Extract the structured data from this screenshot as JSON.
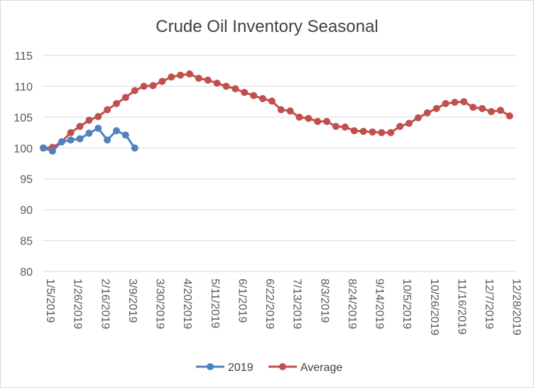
{
  "chart_data": {
    "type": "line",
    "title": "Crude Oil Inventory Seasonal",
    "xlabel": "",
    "ylabel": "",
    "ylim": [
      80,
      115
    ],
    "y_ticks": [
      80,
      85,
      90,
      95,
      100,
      105,
      110,
      115
    ],
    "x_tick_labels": [
      "1/5/2019",
      "1/26/2019",
      "2/16/2019",
      "3/9/2019",
      "3/30/2019",
      "4/20/2019",
      "5/11/2019",
      "6/1/2019",
      "6/22/2019",
      "7/13/2019",
      "8/3/2019",
      "8/24/2019",
      "9/14/2019",
      "10/5/2019",
      "10/26/2019",
      "11/16/2019",
      "12/7/2019",
      "12/28/2019"
    ],
    "grid": true,
    "legend_position": "bottom",
    "series": [
      {
        "name": "2019",
        "color": "#4f81bd",
        "x": [
          "1/5/2019",
          "1/12/2019",
          "1/19/2019",
          "1/26/2019",
          "2/2/2019",
          "2/9/2019",
          "2/16/2019",
          "2/23/2019",
          "3/2/2019",
          "3/9/2019",
          "3/16/2019"
        ],
        "values": [
          100.0,
          99.5,
          101.0,
          101.3,
          101.5,
          102.4,
          103.2,
          101.3,
          102.8,
          102.1,
          100.0
        ]
      },
      {
        "name": "Average",
        "color": "#c0504d",
        "x": [
          "1/5/2019",
          "1/12/2019",
          "1/19/2019",
          "1/26/2019",
          "2/2/2019",
          "2/9/2019",
          "2/16/2019",
          "2/23/2019",
          "3/2/2019",
          "3/9/2019",
          "3/16/2019",
          "3/23/2019",
          "3/30/2019",
          "4/6/2019",
          "4/13/2019",
          "4/20/2019",
          "4/27/2019",
          "5/4/2019",
          "5/11/2019",
          "5/18/2019",
          "5/25/2019",
          "6/1/2019",
          "6/8/2019",
          "6/15/2019",
          "6/22/2019",
          "6/29/2019",
          "7/6/2019",
          "7/13/2019",
          "7/20/2019",
          "7/27/2019",
          "8/3/2019",
          "8/10/2019",
          "8/17/2019",
          "8/24/2019",
          "8/31/2019",
          "9/7/2019",
          "9/14/2019",
          "9/21/2019",
          "9/28/2019",
          "10/5/2019",
          "10/12/2019",
          "10/19/2019",
          "10/26/2019",
          "11/2/2019",
          "11/9/2019",
          "11/16/2019",
          "11/23/2019",
          "11/30/2019",
          "12/7/2019",
          "12/14/2019",
          "12/21/2019",
          "12/28/2019"
        ],
        "values": [
          100.0,
          100.1,
          101.0,
          102.5,
          103.5,
          104.5,
          105.1,
          106.2,
          107.2,
          108.2,
          109.3,
          110.0,
          110.1,
          110.8,
          111.5,
          111.8,
          112.0,
          111.3,
          111.0,
          110.5,
          110.0,
          109.6,
          109.0,
          108.5,
          108.0,
          107.6,
          106.2,
          106.0,
          105.0,
          104.8,
          104.3,
          104.3,
          103.5,
          103.4,
          102.8,
          102.7,
          102.6,
          102.5,
          102.5,
          103.5,
          104.0,
          104.9,
          105.7,
          106.4,
          107.2,
          107.4,
          107.5,
          106.6,
          106.4,
          105.9,
          106.1,
          105.2
        ]
      }
    ]
  }
}
